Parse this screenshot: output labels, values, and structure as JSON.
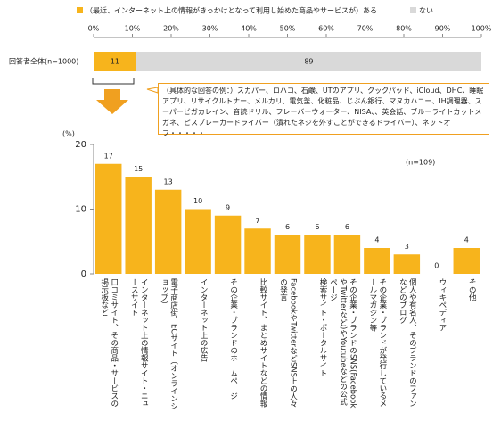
{
  "chart_data": [
    {
      "type": "stacked_bar_h",
      "categories": [
        "回答者全体(n=1000)"
      ],
      "series": [
        {
          "name": "（最近、インターネット上の情報がきっかけとなって利用し始めた商品やサービスが）ある",
          "color": "#f7b41c",
          "values": [
            11
          ]
        },
        {
          "name": "ない",
          "color": "#d9d9d9",
          "values": [
            89
          ]
        }
      ],
      "xlim": [
        0,
        100
      ],
      "xticks": [
        {
          "value": 0,
          "label": "0%"
        },
        {
          "value": 10,
          "label": "10%"
        },
        {
          "value": 20,
          "label": "20%"
        },
        {
          "value": 30,
          "label": "30%"
        },
        {
          "value": 40,
          "label": "40%"
        },
        {
          "value": 50,
          "label": "50%"
        },
        {
          "value": 60,
          "label": "60%"
        },
        {
          "value": 70,
          "label": "70%"
        },
        {
          "value": 80,
          "label": "80%"
        },
        {
          "value": 90,
          "label": "90%"
        },
        {
          "value": 100,
          "label": "100%"
        }
      ],
      "annotation": "（具体的な回答の例：）スカパー、ロハコ、石鹸、UTのアプリ、クックパッド、iCloud、DHC、睡眠アプリ、リサイクルトナー、メルカリ、電気釜、化粧品、じぶん銀行、マヌカハニー、IH調理器、スーパービガカレイン、音読ドリル、フレーバーウォーター、NISA、、英会話、ブルーライトカットメガネ、ピスプレーカードライバー（潰れたネジを外すことができるドライバー）、ネットオフ・・・・・"
    },
    {
      "type": "bar",
      "ylabel": "(%)",
      "annotation": "(n=109)",
      "color": "#f7b41c",
      "categories": [
        "口コミサイト、その商品・サービスの掲示板など",
        "インターネット上の情報サイト・ニュースサイト",
        "電子商店街、ECサイト（オンラインショップ）",
        "インターネット上の広告",
        "その企業・ブランドのホームページ",
        "比較サイト、まとめサイトなどの情報",
        "FacebookやTwitterなどSNS上の人々の発言",
        "検索サイト・ポータルサイト",
        "その企業・ブランドのSNS(FacebookやTwitterなど)やYoutubeなどの公式ページ",
        "その企業・ブランドが発行しているメールマガジン等",
        "個人や有名人、そのブランドのファンなどのブログ",
        "ウィキペディア",
        "その他"
      ],
      "values": [
        17,
        15,
        13,
        10,
        9,
        7,
        6,
        6,
        6,
        4,
        3,
        0,
        4
      ],
      "ylim": [
        0,
        20
      ],
      "yticks": [
        0,
        10,
        20
      ]
    }
  ]
}
